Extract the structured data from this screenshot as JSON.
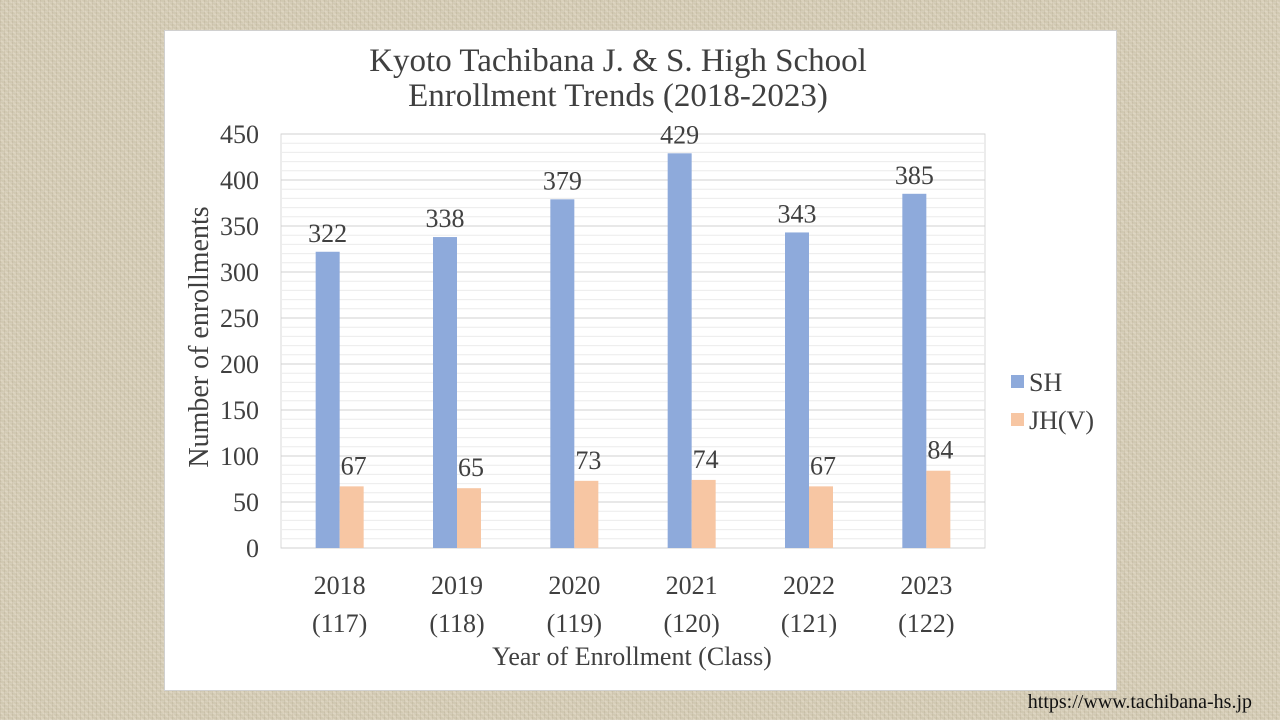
{
  "chart_data": {
    "type": "bar",
    "title_lines": [
      "Kyoto Tachibana J. & S. High School",
      "Enrollment Trends (2018-2023)"
    ],
    "xlabel": "Year of Enrollment (Class)",
    "ylabel": "Number of enrollments",
    "categories": [
      {
        "year": "2018",
        "class": "(117)"
      },
      {
        "year": "2019",
        "class": "(118)"
      },
      {
        "year": "2020",
        "class": "(119)"
      },
      {
        "year": "2021",
        "class": "(120)"
      },
      {
        "year": "2022",
        "class": "(121)"
      },
      {
        "year": "2023",
        "class": "(122)"
      }
    ],
    "series": [
      {
        "name": "SH",
        "color": "#8eaadb",
        "values": [
          322,
          338,
          379,
          429,
          343,
          385
        ]
      },
      {
        "name": "JH(V)",
        "color": "#f7c6a3",
        "values": [
          67,
          65,
          73,
          74,
          67,
          84
        ]
      }
    ],
    "ylim": [
      0,
      450
    ],
    "yticks": [
      0,
      50,
      100,
      150,
      200,
      250,
      300,
      350,
      400,
      450
    ],
    "grid": true,
    "legend": "right"
  },
  "footer": {
    "source_url": "https://www.tachibana-hs.jp"
  },
  "colors": {
    "background": "#d8cfb8",
    "plot_background": "#ffffff",
    "gridline": "#d9d9d9",
    "text": "#404040"
  }
}
